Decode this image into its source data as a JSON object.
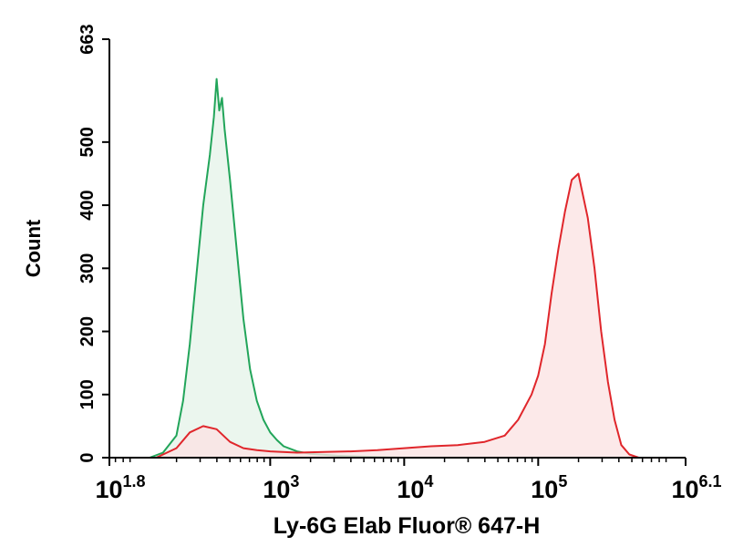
{
  "chart_data": {
    "type": "area",
    "title": "",
    "xlabel": "Ly-6G Elab Fluor® 647-H",
    "ylabel": "Count",
    "x_scale": "log10",
    "xlim_log10": [
      1.8,
      6.1
    ],
    "ylim": [
      0,
      663
    ],
    "yticks": [
      0,
      100,
      200,
      300,
      400,
      500,
      663
    ],
    "ytick_labels": [
      "0",
      "100",
      "200",
      "300",
      "400",
      "500",
      "663"
    ],
    "xticks_log10": [
      1.8,
      3,
      4,
      5,
      6.1
    ],
    "xtick_labels": [
      {
        "base": "10",
        "exp": "1.8"
      },
      {
        "base": "10",
        "exp": "3"
      },
      {
        "base": "10",
        "exp": "4"
      },
      {
        "base": "10",
        "exp": "5"
      },
      {
        "base": "10",
        "exp": "6.1"
      }
    ],
    "grid": false,
    "legend": "none",
    "series": [
      {
        "color": "#22a55a",
        "fill": "#e6f4ea",
        "points_log10x": [
          [
            2.1,
            0
          ],
          [
            2.2,
            8
          ],
          [
            2.3,
            35
          ],
          [
            2.35,
            90
          ],
          [
            2.4,
            180
          ],
          [
            2.45,
            290
          ],
          [
            2.5,
            400
          ],
          [
            2.55,
            480
          ],
          [
            2.58,
            540
          ],
          [
            2.6,
            600
          ],
          [
            2.62,
            550
          ],
          [
            2.64,
            570
          ],
          [
            2.66,
            520
          ],
          [
            2.7,
            440
          ],
          [
            2.75,
            330
          ],
          [
            2.8,
            220
          ],
          [
            2.85,
            140
          ],
          [
            2.9,
            90
          ],
          [
            2.95,
            60
          ],
          [
            3.0,
            40
          ],
          [
            3.05,
            28
          ],
          [
            3.1,
            18
          ],
          [
            3.2,
            10
          ],
          [
            3.3,
            6
          ],
          [
            3.5,
            3
          ],
          [
            3.8,
            1
          ],
          [
            4.0,
            0
          ]
        ]
      },
      {
        "color": "#e0262b",
        "fill": "#fbe3e3",
        "points_log10x": [
          [
            2.15,
            0
          ],
          [
            2.3,
            15
          ],
          [
            2.4,
            40
          ],
          [
            2.5,
            50
          ],
          [
            2.6,
            45
          ],
          [
            2.7,
            25
          ],
          [
            2.8,
            15
          ],
          [
            2.9,
            12
          ],
          [
            3.0,
            10
          ],
          [
            3.2,
            8
          ],
          [
            3.4,
            9
          ],
          [
            3.6,
            10
          ],
          [
            3.8,
            12
          ],
          [
            4.0,
            15
          ],
          [
            4.2,
            18
          ],
          [
            4.4,
            20
          ],
          [
            4.6,
            25
          ],
          [
            4.75,
            35
          ],
          [
            4.85,
            60
          ],
          [
            4.95,
            100
          ],
          [
            5.0,
            130
          ],
          [
            5.05,
            180
          ],
          [
            5.1,
            260
          ],
          [
            5.15,
            330
          ],
          [
            5.2,
            390
          ],
          [
            5.25,
            440
          ],
          [
            5.3,
            450
          ],
          [
            5.33,
            420
          ],
          [
            5.37,
            380
          ],
          [
            5.42,
            300
          ],
          [
            5.47,
            200
          ],
          [
            5.52,
            120
          ],
          [
            5.57,
            60
          ],
          [
            5.62,
            20
          ],
          [
            5.68,
            5
          ],
          [
            5.75,
            0
          ]
        ]
      }
    ]
  }
}
